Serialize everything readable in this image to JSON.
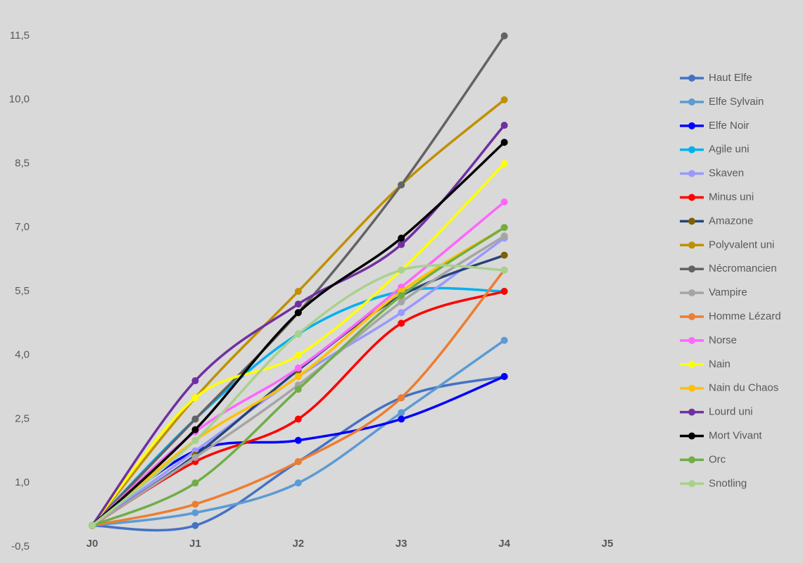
{
  "chart_data": {
    "type": "line",
    "smooth": true,
    "categories": [
      "J0",
      "J1",
      "J2",
      "J3",
      "J4",
      "J5"
    ],
    "ylim": [
      -0.5,
      11.5
    ],
    "yticks": [
      {
        "value": -0.5,
        "label": "-0,5"
      },
      {
        "value": 1.0,
        "label": "1,0"
      },
      {
        "value": 2.5,
        "label": "2,5"
      },
      {
        "value": 4.0,
        "label": "4,0"
      },
      {
        "value": 5.5,
        "label": "5,5"
      },
      {
        "value": 7.0,
        "label": "7,0"
      },
      {
        "value": 8.5,
        "label": "8,5"
      },
      {
        "value": 10.0,
        "label": "10,0"
      },
      {
        "value": 11.5,
        "label": "11,5"
      }
    ],
    "grid": false,
    "legend": "right",
    "series": [
      {
        "name": "Haut Elfe",
        "color": "#4472c4",
        "values": [
          0,
          0,
          1.5,
          3.0,
          3.5,
          null
        ]
      },
      {
        "name": "Elfe Sylvain",
        "color": "#5b9bd5",
        "values": [
          0,
          0.3,
          1.0,
          2.65,
          4.35,
          null
        ]
      },
      {
        "name": "Elfe Noir",
        "color": "#0000ff",
        "values": [
          0,
          1.75,
          2.0,
          2.5,
          3.5,
          null
        ]
      },
      {
        "name": "Agile uni",
        "color": "#00b0f0",
        "values": [
          0,
          2.5,
          4.5,
          5.5,
          5.5,
          null
        ]
      },
      {
        "name": "Skaven",
        "color": "#9999ff",
        "values": [
          0,
          1.75,
          3.5,
          5.0,
          6.75,
          null
        ]
      },
      {
        "name": "Minus uni",
        "color": "#ff0000",
        "values": [
          0,
          1.5,
          2.5,
          4.75,
          5.5,
          null
        ]
      },
      {
        "name": "Amazone",
        "color": "#264478",
        "marker_color": "#7f6000",
        "values": [
          0,
          1.65,
          3.65,
          5.4,
          6.35,
          null
        ]
      },
      {
        "name": "Polyvalent uni",
        "color": "#bf9000",
        "values": [
          0,
          3.0,
          5.5,
          8.0,
          10.0,
          null
        ]
      },
      {
        "name": "Nécromancien",
        "color": "#636363",
        "values": [
          0,
          2.5,
          5.0,
          8.0,
          11.5,
          null
        ]
      },
      {
        "name": "Vampire",
        "color": "#a5a5a5",
        "values": [
          0,
          1.6,
          3.3,
          5.25,
          6.8,
          null
        ]
      },
      {
        "name": "Homme Lézard",
        "color": "#ed7d31",
        "values": [
          0,
          0.5,
          1.5,
          3.0,
          6.0,
          null
        ]
      },
      {
        "name": "Norse",
        "color": "#ff66ff",
        "values": [
          0,
          2.2,
          3.7,
          5.6,
          7.6,
          null
        ]
      },
      {
        "name": "Nain",
        "color": "#ffff00",
        "values": [
          0,
          3.0,
          4.0,
          6.0,
          8.5,
          null
        ]
      },
      {
        "name": "Nain du Chaos",
        "color": "#ffc000",
        "values": [
          0,
          2.0,
          3.5,
          5.5,
          7.0,
          null
        ]
      },
      {
        "name": "Lourd uni",
        "color": "#7030a0",
        "values": [
          0,
          3.4,
          5.2,
          6.6,
          9.4,
          null
        ]
      },
      {
        "name": "Mort Vivant",
        "color": "#000000",
        "values": [
          0,
          2.25,
          5.0,
          6.75,
          9.0,
          null
        ]
      },
      {
        "name": "Orc",
        "color": "#70ad47",
        "values": [
          0,
          1.0,
          3.2,
          5.4,
          7.0,
          null
        ]
      },
      {
        "name": "Snotling",
        "color": "#a9d18e",
        "values": [
          0,
          2.0,
          4.5,
          6.0,
          6.0,
          null
        ]
      }
    ]
  }
}
